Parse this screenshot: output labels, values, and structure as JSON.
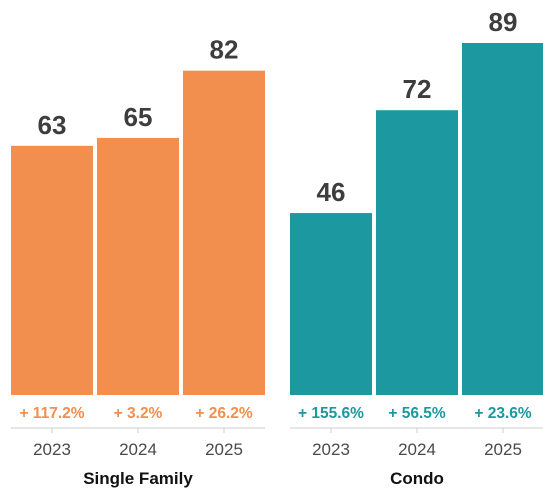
{
  "chart_data": {
    "type": "bar",
    "title": "",
    "xlabel": "",
    "ylabel": "",
    "ylim": [
      0,
      89
    ],
    "grid": false,
    "legend": "none",
    "groups": [
      {
        "name": "Single Family",
        "color": "#F28E4E",
        "categories": [
          "2023",
          "2024",
          "2025"
        ],
        "values": [
          63,
          65,
          82
        ],
        "changes": [
          "+ 117.2%",
          "+ 3.2%",
          "+ 26.2%"
        ]
      },
      {
        "name": "Condo",
        "color": "#1B98A0",
        "categories": [
          "2023",
          "2024",
          "2025"
        ],
        "values": [
          46,
          72,
          89
        ],
        "changes": [
          "+ 155.6%",
          "+ 56.5%",
          "+ 23.6%"
        ]
      }
    ]
  }
}
